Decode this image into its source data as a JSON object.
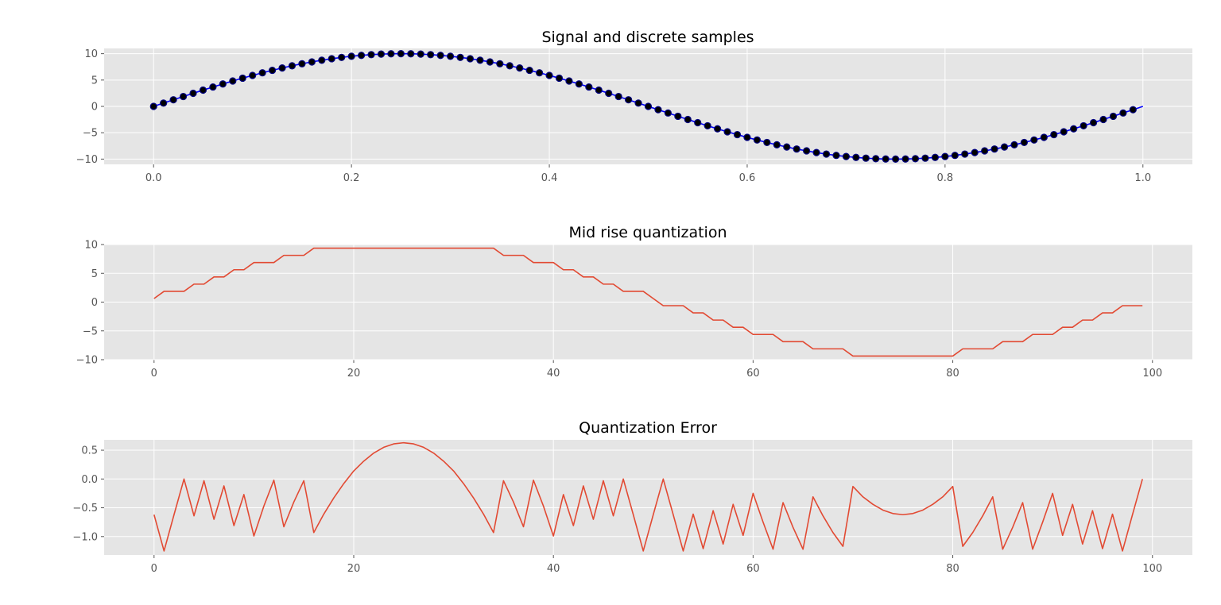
{
  "chart_data": [
    {
      "type": "line",
      "title": "Signal and discrete samples",
      "xlabel": "",
      "ylabel": "",
      "xlim": [
        -0.05,
        1.05
      ],
      "ylim": [
        -11,
        11
      ],
      "xticks": [
        0.0,
        0.2,
        0.4,
        0.6,
        0.8,
        1.0
      ],
      "xtick_labels": [
        "0.0",
        "0.2",
        "0.4",
        "0.6",
        "0.8",
        "1.0"
      ],
      "yticks": [
        10,
        5,
        0,
        -5,
        -10
      ],
      "ytick_labels": [
        "10",
        "5",
        "0",
        "−5",
        "−10"
      ],
      "grid": true,
      "series": [
        {
          "kind": "line",
          "color": "#0000ff",
          "function": "10*sin(2*pi*x)",
          "x_range": [
            0,
            1
          ],
          "n_points": 400
        },
        {
          "kind": "scatter",
          "color": "#000000",
          "edge_color": "#000080",
          "function": "10*sin(2*pi*x)",
          "x_start": 0,
          "x_step": 0.01,
          "n_points": 100
        }
      ]
    },
    {
      "type": "line",
      "title": "Mid rise quantization",
      "xlabel": "",
      "ylabel": "",
      "xlim": [
        -5,
        104
      ],
      "ylim": [
        -10,
        10
      ],
      "xticks": [
        0,
        20,
        40,
        60,
        80,
        100
      ],
      "xtick_labels": [
        "0",
        "20",
        "40",
        "60",
        "80",
        "100"
      ],
      "yticks": [
        10,
        5,
        0,
        -5,
        -10
      ],
      "ytick_labels": [
        "10",
        "5",
        "0",
        "−5",
        "−10"
      ],
      "grid": true,
      "series": [
        {
          "kind": "line",
          "color": "#e24a33",
          "x_start": 0,
          "values": [
            0.62,
            1.87,
            1.87,
            1.87,
            3.12,
            3.12,
            4.37,
            4.37,
            5.62,
            5.62,
            6.87,
            6.87,
            6.87,
            8.12,
            8.12,
            8.12,
            9.37,
            9.37,
            9.37,
            9.37,
            9.37,
            9.37,
            9.37,
            9.37,
            9.37,
            9.37,
            9.37,
            9.37,
            9.37,
            9.37,
            9.37,
            9.37,
            9.37,
            9.37,
            9.37,
            8.12,
            8.12,
            8.12,
            6.87,
            6.87,
            6.87,
            5.62,
            5.62,
            4.37,
            4.37,
            3.12,
            3.12,
            1.87,
            1.87,
            1.87,
            0.62,
            -0.62,
            -0.62,
            -0.62,
            -1.87,
            -1.87,
            -3.12,
            -3.12,
            -4.37,
            -4.37,
            -5.62,
            -5.62,
            -5.62,
            -6.87,
            -6.87,
            -6.87,
            -8.12,
            -8.12,
            -8.12,
            -8.12,
            -9.37,
            -9.37,
            -9.37,
            -9.37,
            -9.37,
            -9.37,
            -9.37,
            -9.37,
            -9.37,
            -9.37,
            -9.37,
            -8.12,
            -8.12,
            -8.12,
            -8.12,
            -6.87,
            -6.87,
            -6.87,
            -5.62,
            -5.62,
            -5.62,
            -4.37,
            -4.37,
            -3.12,
            -3.12,
            -1.87,
            -1.87,
            -0.62,
            -0.62,
            -0.62
          ]
        }
      ]
    },
    {
      "type": "line",
      "title": "Quantization Error",
      "xlabel": "",
      "ylabel": "",
      "xlim": [
        -5,
        104
      ],
      "ylim": [
        -1.32,
        0.68
      ],
      "xticks": [
        0,
        20,
        40,
        60,
        80,
        100
      ],
      "xtick_labels": [
        "0",
        "20",
        "40",
        "60",
        "80",
        "100"
      ],
      "yticks": [
        0.5,
        0.0,
        -0.5,
        -1.0
      ],
      "ytick_labels": [
        "0.5",
        "0.0",
        "−0.5",
        "−1.0"
      ],
      "grid": true,
      "series": [
        {
          "kind": "line",
          "color": "#e24a33",
          "x_start": 0,
          "values": [
            -0.62,
            -1.25,
            -0.62,
            0.0,
            -0.64,
            -0.03,
            -0.7,
            -0.12,
            -0.81,
            -0.27,
            -0.99,
            -0.47,
            -0.02,
            -0.83,
            -0.4,
            -0.03,
            -0.93,
            -0.61,
            -0.33,
            -0.08,
            0.14,
            0.31,
            0.45,
            0.55,
            0.61,
            0.63,
            0.61,
            0.55,
            0.45,
            0.31,
            0.14,
            -0.08,
            -0.33,
            -0.61,
            -0.93,
            -0.03,
            -0.4,
            -0.83,
            -0.02,
            -0.47,
            -0.99,
            -0.27,
            -0.81,
            -0.12,
            -0.7,
            -0.03,
            -0.64,
            0.0,
            -0.62,
            -1.25,
            -0.62,
            0.0,
            -0.62,
            -1.25,
            -0.61,
            -1.21,
            -0.55,
            -1.13,
            -0.44,
            -0.98,
            -0.25,
            -0.75,
            -1.22,
            -0.41,
            -0.84,
            -1.22,
            -0.31,
            -0.64,
            -0.93,
            -1.17,
            -0.13,
            -0.31,
            -0.44,
            -0.54,
            -0.6,
            -0.62,
            -0.6,
            -0.54,
            -0.44,
            -0.31,
            -0.13,
            -1.17,
            -0.93,
            -0.64,
            -0.31,
            -1.22,
            -0.84,
            -0.41,
            -1.22,
            -0.75,
            -0.25,
            -0.98,
            -0.44,
            -1.13,
            -0.55,
            -1.21,
            -0.61,
            -1.25,
            -0.62,
            0.0
          ]
        }
      ]
    }
  ]
}
